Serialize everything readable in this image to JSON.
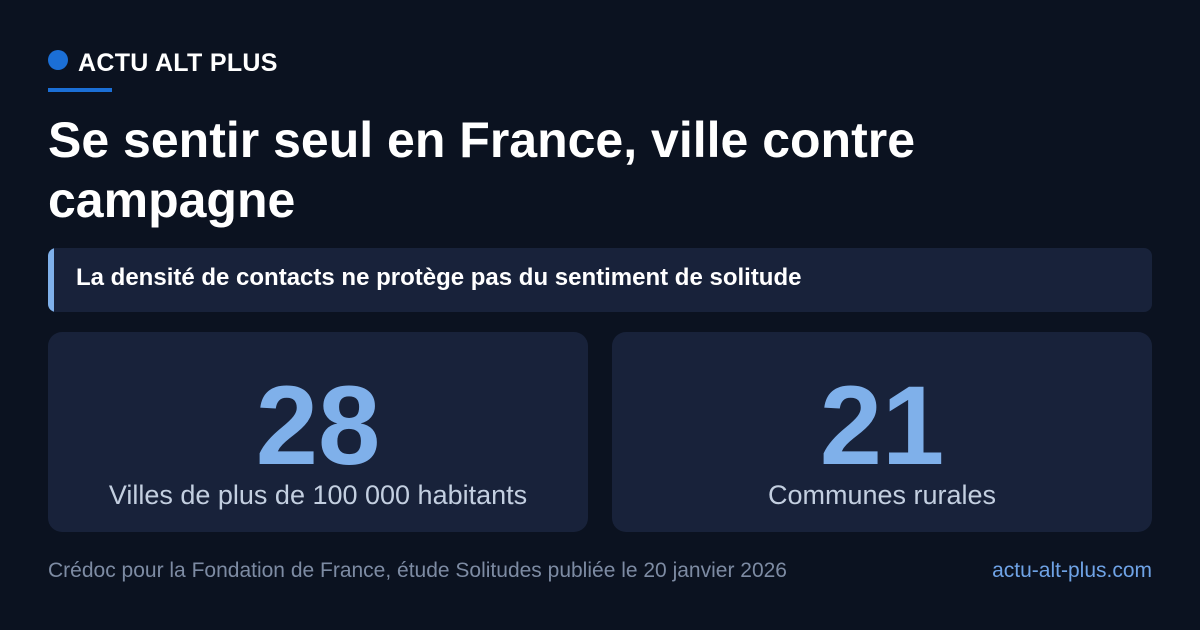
{
  "brand": {
    "name": "ACTU ALT PLUS",
    "dot_color": "#1b6fd6"
  },
  "headline": "Se sentir seul en France, ville contre campagne",
  "subtitle": "La densité de contacts ne protège pas du sentiment de solitude",
  "stats": [
    {
      "value": "28",
      "label": "Villes de plus de 100 000 habitants"
    },
    {
      "value": "21",
      "label": "Communes rurales"
    }
  ],
  "footer": {
    "source": "Crédoc pour la Fondation de France, étude Solitudes publiée le 20 janvier 2026",
    "site": "actu-alt-plus.com"
  },
  "colors": {
    "background": "#0b1220",
    "card": "#18223a",
    "accent": "#7fb0ea",
    "brand": "#1b6fd6"
  }
}
